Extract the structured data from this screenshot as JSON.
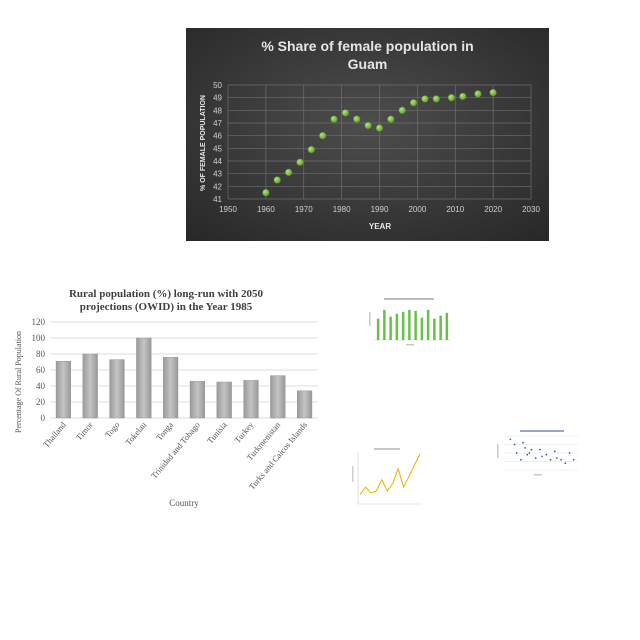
{
  "chart_data": [
    {
      "type": "scatter",
      "title_lines": [
        "% Share of female population in",
        "Guam"
      ],
      "xlabel": "YEAR",
      "ylabel": "% OF FEMALE POPULATION",
      "xlim": [
        1950,
        2030
      ],
      "ylim": [
        41,
        50
      ],
      "xticks": [
        1950,
        1960,
        1970,
        1980,
        1990,
        2000,
        2010,
        2020,
        2030
      ],
      "yticks": [
        41,
        42,
        43,
        44,
        45,
        46,
        47,
        48,
        49,
        50
      ],
      "grid": true,
      "colors": {
        "background": "#3d3d3d",
        "marker": "#7cbf3f",
        "text": "#e6e6e6"
      },
      "x": [
        1960,
        1963,
        1966,
        1969,
        1972,
        1975,
        1978,
        1981,
        1984,
        1987,
        1990,
        1993,
        1996,
        1999,
        2002,
        2005,
        2009,
        2012,
        2016,
        2020
      ],
      "y": [
        41.5,
        42.5,
        43.1,
        43.9,
        44.9,
        46.0,
        47.3,
        47.8,
        47.3,
        46.8,
        46.6,
        47.3,
        48.0,
        48.6,
        48.9,
        48.9,
        49.0,
        49.1,
        49.3,
        49.4
      ]
    },
    {
      "type": "bar",
      "title_lines": [
        "Rural population (%) long-run with 2050",
        "projections (OWID) in the Year 1985"
      ],
      "xlabel": "Country",
      "ylabel": "Percentage Of Rural Population",
      "ylim": [
        0,
        120
      ],
      "yticks": [
        0,
        20,
        40,
        60,
        80,
        100,
        120
      ],
      "grid": true,
      "colors": {
        "bar": "#a9a9a9"
      },
      "categories": [
        "Thailand",
        "Timor",
        "Togo",
        "Tokelau",
        "Tonga",
        "Trinidad and Tobago",
        "Tunisia",
        "Turkey",
        "Turkmenistan",
        "Turks and Caicos Islands"
      ],
      "values": [
        71,
        80,
        73,
        100,
        76,
        46,
        45,
        47,
        53,
        34
      ]
    },
    {
      "type": "bar",
      "colors": {
        "bar": "#6abf4b"
      },
      "values": [
        22,
        31,
        24,
        27,
        29,
        31,
        30,
        23,
        31,
        22,
        25,
        28
      ]
    },
    {
      "type": "line",
      "colors": {
        "line": "#e8b000"
      },
      "values": [
        2,
        4,
        2.5,
        3,
        6,
        3,
        5,
        9,
        4,
        7,
        10,
        13
      ]
    },
    {
      "type": "scatter",
      "colors": {
        "marker": "#3a5bbf"
      },
      "x": [
        3,
        5,
        6,
        8,
        9,
        10,
        11,
        12,
        13,
        15,
        17,
        18,
        20,
        22,
        24,
        25,
        27,
        29,
        31,
        33
      ],
      "y": [
        9,
        7.5,
        5,
        3,
        8,
        6.5,
        4.5,
        5,
        6,
        3.5,
        6,
        4,
        4.5,
        3,
        5.5,
        3.5,
        3,
        2,
        5,
        3
      ]
    }
  ]
}
